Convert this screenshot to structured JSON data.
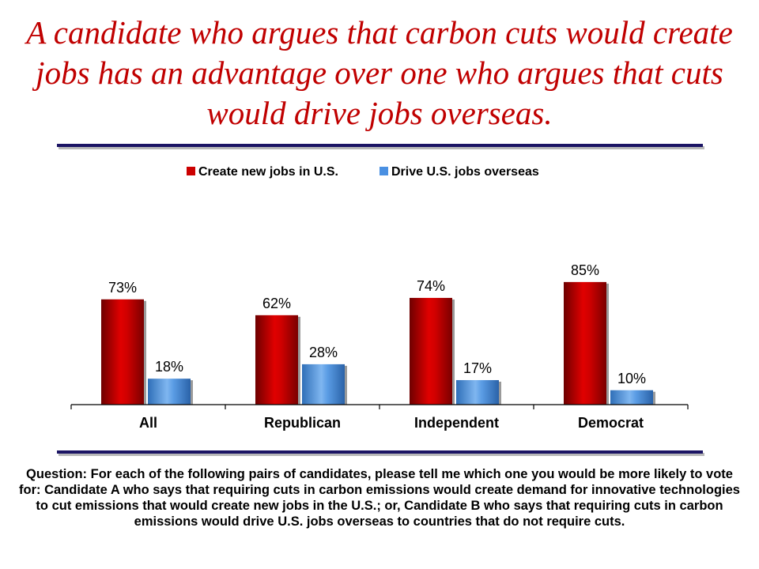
{
  "title": "A candidate who argues that carbon cuts would create jobs has an advantage over one who argues that cuts would drive jobs overseas.",
  "question": "Question: For each of the following pairs of candidates, please tell me which one you would be more likely to vote for: Candidate A who says that requiring cuts in carbon emissions would create demand for innovative technologies to cut emissions that would create new jobs in the U.S.; or, Candidate B who says that requiring cuts in carbon emissions would drive U.S. jobs overseas to countries that do not require cuts.",
  "colors": {
    "title": "#c00000",
    "rule": "#1b1464",
    "series_create": "#cc0000",
    "series_drive": "#4a90e2"
  },
  "chart_data": {
    "type": "bar",
    "categories": [
      "All",
      "Republican",
      "Independent",
      "Democrat"
    ],
    "series": [
      {
        "name": "Create new jobs in U.S.",
        "values": [
          73,
          62,
          74,
          85
        ],
        "labels": [
          "73%",
          "62%",
          "74%",
          "85%"
        ]
      },
      {
        "name": "Drive U.S. jobs overseas",
        "values": [
          18,
          28,
          17,
          10
        ],
        "labels": [
          "18%",
          "28%",
          "17%",
          "10%"
        ]
      }
    ],
    "ylim": [
      0,
      100
    ],
    "legend": "top-center",
    "grid": false
  }
}
